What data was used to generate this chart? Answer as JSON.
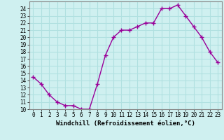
{
  "x": [
    0,
    1,
    2,
    3,
    4,
    5,
    6,
    7,
    8,
    9,
    10,
    11,
    12,
    13,
    14,
    15,
    16,
    17,
    18,
    19,
    20,
    21,
    22,
    23
  ],
  "y": [
    14.5,
    13.5,
    12.0,
    11.0,
    10.5,
    10.5,
    10.0,
    10.0,
    13.5,
    17.5,
    20.0,
    21.0,
    21.0,
    21.5,
    22.0,
    22.0,
    24.0,
    24.0,
    24.5,
    23.0,
    21.5,
    20.0,
    18.0,
    16.5
  ],
  "line_color": "#990099",
  "marker": "+",
  "marker_size": 4,
  "line_width": 1.0,
  "marker_linewidth": 1.0,
  "xlabel": "Windchill (Refroidissement éolien,°C)",
  "xlabel_fontsize": 6.5,
  "ylim_min": 10,
  "ylim_max": 25,
  "xlim_min": -0.5,
  "xlim_max": 23.5,
  "yticks": [
    10,
    11,
    12,
    13,
    14,
    15,
    16,
    17,
    18,
    19,
    20,
    21,
    22,
    23,
    24
  ],
  "xticks": [
    0,
    1,
    2,
    3,
    4,
    5,
    6,
    7,
    8,
    9,
    10,
    11,
    12,
    13,
    14,
    15,
    16,
    17,
    18,
    19,
    20,
    21,
    22,
    23
  ],
  "tick_fontsize": 5.5,
  "bg_color": "#cff0f0",
  "grid_color": "#b0e0e0",
  "spine_color": "#888888",
  "xlabel_fontweight": "bold"
}
